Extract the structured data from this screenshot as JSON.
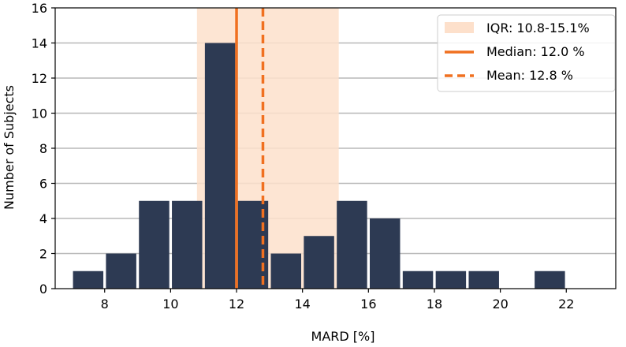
{
  "chart_data": {
    "type": "bar",
    "xlabel": "MARD [%]",
    "ylabel": "Number of Subjects",
    "xlim": [
      6.5,
      23.5
    ],
    "ylim": [
      0,
      16
    ],
    "xticks": [
      8,
      10,
      12,
      14,
      16,
      18,
      20,
      22
    ],
    "yticks": [
      0,
      2,
      4,
      6,
      8,
      10,
      12,
      14,
      16
    ],
    "grid": "horizontal",
    "bin_width": 1,
    "bins": [
      {
        "start": 7,
        "count": 1
      },
      {
        "start": 8,
        "count": 2
      },
      {
        "start": 9,
        "count": 5
      },
      {
        "start": 10,
        "count": 5
      },
      {
        "start": 11,
        "count": 14
      },
      {
        "start": 12,
        "count": 5
      },
      {
        "start": 13,
        "count": 2
      },
      {
        "start": 14,
        "count": 3
      },
      {
        "start": 15,
        "count": 5
      },
      {
        "start": 16,
        "count": 4
      },
      {
        "start": 17,
        "count": 1
      },
      {
        "start": 18,
        "count": 1
      },
      {
        "start": 19,
        "count": 1
      },
      {
        "start": 20,
        "count": 0
      },
      {
        "start": 21,
        "count": 1
      }
    ],
    "iqr": [
      10.8,
      15.1
    ],
    "median": 12.0,
    "mean": 12.8,
    "legend": {
      "placement": "top-right",
      "iqr_label": "IQR: 10.8-15.1%",
      "median_label": "Median: 12.0 %",
      "mean_label": "Mean: 12.8 %"
    },
    "colors": {
      "bar": "#2d3a53",
      "iqr_fill": "#fde0cb",
      "line": "#f07020",
      "grid": "#b8b8b8"
    }
  }
}
